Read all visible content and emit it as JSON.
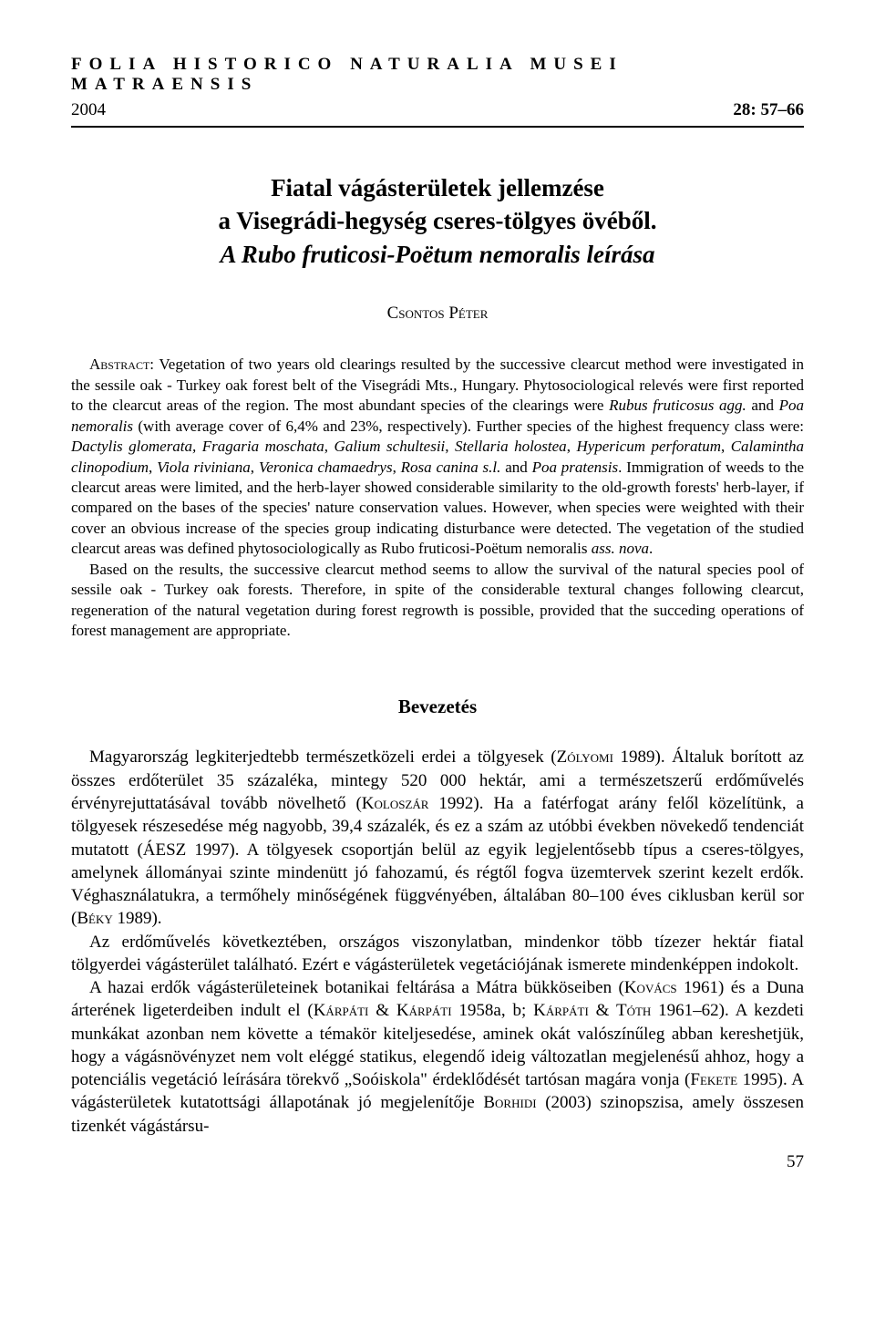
{
  "header": {
    "journal": "FOLIA HISTORICO NATURALIA MUSEI MATRAENSIS",
    "year": "2004",
    "pages": "28: 57–66"
  },
  "title": {
    "line1": "Fiatal vágásterületek jellemzése",
    "line2": "a Visegrádi-hegység cseres-tölgyes övéből.",
    "subtitle": "A Rubo fruticosi-Poëtum nemoralis leírása"
  },
  "author": {
    "surname": "Csontos",
    "given": "Péter"
  },
  "abstract": {
    "label": "Abstract:",
    "p1a": " Vegetation of two years old clearings resulted by the successive clearcut method were investigated in the sessile oak - Turkey oak forest belt of the Visegrádi Mts., Hungary. Phytosociological relevés were first reported to the clearcut areas of the region. The most abundant species of the clearings were ",
    "p1i1": "Rubus fruticosus agg.",
    "p1b": " and ",
    "p1i2": "Poa nemoralis",
    "p1c": " (with average cover of 6,4% and 23%, respectively). Further species of the highest frequency class were: ",
    "p1i3": "Dactylis glomerata, Fragaria moschata",
    "p1d": ", ",
    "p1i4": "Galium schultesii",
    "p1e": ", ",
    "p1i5": "Stellaria holostea",
    "p1f": ", ",
    "p1i6": "Hypericum perforatum",
    "p1g": ", ",
    "p1i7": "Calamintha clinopodium",
    "p1h": ", ",
    "p1i8": "Viola riviniana",
    "p1i": ", ",
    "p1i9": "Veronica chamaedrys",
    "p1j": ", ",
    "p1i10": "Rosa canina s.l.",
    "p1k": " and ",
    "p1i11": "Poa pratensis",
    "p1l": ". Immigration of weeds to the clearcut areas were limited, and the herb-layer showed considerable similarity to the old-growth forests' herb-layer, if compared on the bases of the species' nature conservation values. However, when species were weighted with their cover an obvious increase of the species group indicating disturbance were detected. The vegetation of the studied clearcut areas was defined phytosociologically as Rubo fruticosi-Poëtum nemoralis ",
    "p1i12": "ass. nova",
    "p1m": ".",
    "p2": "Based on the results, the successive clearcut method seems to allow the survival of the natural species pool of sessile oak - Turkey oak forests. Therefore, in spite of the considerable textural changes following clearcut, regeneration of the natural vegetation during forest regrowth is possible, provided that the succeding operations of forest management are appropriate."
  },
  "section1": {
    "heading": "Bevezetés",
    "p1a": "Magyarország legkiterjedtebb természetközeli erdei a tölgyesek (",
    "p1sc1": "Zólyomi",
    "p1b": " 1989). Általuk borított az összes erdőterület 35 százaléka, mintegy 520 000 hektár, ami a természetszerű erdőművelés érvényrejuttatásával tovább növelhető (",
    "p1sc2": "Koloszár",
    "p1c": " 1992). Ha a fatérfogat arány felől közelítünk, a tölgyesek részesedése még nagyobb, 39,4 százalék, és ez a szám az utóbbi években növekedő tendenciát mutatott (ÁESZ 1997). A tölgyesek csoportján belül az egyik legjelentősebb típus a cseres-tölgyes, amelynek állományai szinte mindenütt jó fahozamú, és régtől fogva üzemtervek szerint kezelt erdők. Véghasználatukra, a termőhely minőségének függvényében, általában 80–100 éves ciklusban kerül sor (",
    "p1sc3": "Béky",
    "p1d": " 1989).",
    "p2": "Az erdőművelés következtében, országos viszonylatban, mindenkor több tízezer hektár fiatal tölgyerdei vágásterület található. Ezért e vágásterületek vegetációjának ismerete mindenképpen indokolt.",
    "p3a": "A hazai erdők vágásterületeinek botanikai feltárása a Mátra bükköseiben (",
    "p3sc1": "Kovács",
    "p3b": " 1961) és a Duna árterének ligeterdeiben indult el (",
    "p3sc2": "Kárpáti & Kárpáti",
    "p3c": " 1958a, b; ",
    "p3sc3": "Kárpáti & Tóth",
    "p3d": " 1961–62). A kezdeti munkákat azonban nem követte a témakör kiteljesedése, aminek okát valószínűleg abban kereshetjük, hogy a vágásnövényzet nem volt eléggé statikus, elegendő ideig változatlan megjelenésű ahhoz, hogy a potenciális vegetáció leírására törekvő „Soóiskola\" érdeklődését tartósan magára vonja (",
    "p3sc4": "Fekete",
    "p3e": " 1995). A vágásterületek kutatottsági állapotának jó megjelenítője ",
    "p3sc5": "Borhidi",
    "p3f": " (2003) szinopszisa, amely összesen tizenkét vágástársu-"
  },
  "pageNumber": "57"
}
